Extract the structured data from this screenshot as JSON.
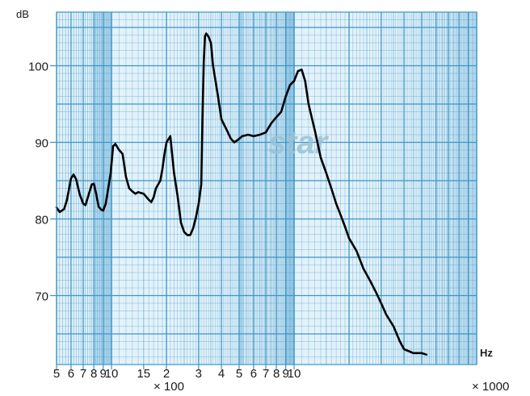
{
  "chart_data": {
    "type": "line",
    "x_scale": "log",
    "xlim": [
      50,
      10000
    ],
    "ylim": [
      61,
      107
    ],
    "ylabel": "dB",
    "xlabel": "Hz",
    "grid": true,
    "watermark": "star",
    "colors": {
      "grid": "#3d95c6",
      "band": "#a9d3ea",
      "background": "#e3f2fa",
      "line": "#000000",
      "text": "#1a1a1a",
      "watermark": "#9ac2d6"
    },
    "y_ticks": [
      {
        "value": 100,
        "label": "100"
      },
      {
        "value": 90,
        "label": "90"
      },
      {
        "value": 80,
        "label": "80"
      },
      {
        "value": 70,
        "label": "70"
      }
    ],
    "x_ticks": [
      {
        "value": 50,
        "label": "5"
      },
      {
        "value": 60,
        "label": "6"
      },
      {
        "value": 70,
        "label": "7"
      },
      {
        "value": 80,
        "label": "8"
      },
      {
        "value": 90,
        "label": "9"
      },
      {
        "value": 100,
        "label": "10"
      },
      {
        "value": 150,
        "label": "15"
      },
      {
        "value": 200,
        "label": "2"
      },
      {
        "value": 300,
        "label": "3"
      },
      {
        "value": 400,
        "label": "4"
      },
      {
        "value": 500,
        "label": "5"
      },
      {
        "value": 600,
        "label": "6"
      },
      {
        "value": 700,
        "label": "7"
      },
      {
        "value": 800,
        "label": "8"
      },
      {
        "value": 900,
        "label": "9"
      },
      {
        "value": 1000,
        "label": "10"
      }
    ],
    "x_multipliers": [
      "× 100",
      "× 1000"
    ],
    "series": [
      {
        "points": [
          [
            50,
            81.5
          ],
          [
            52,
            80.9
          ],
          [
            55,
            81.3
          ],
          [
            57,
            82.5
          ],
          [
            60,
            85.3
          ],
          [
            62,
            85.8
          ],
          [
            64,
            85.2
          ],
          [
            67,
            83.2
          ],
          [
            70,
            82.0
          ],
          [
            72,
            81.8
          ],
          [
            75,
            83.2
          ],
          [
            78,
            84.5
          ],
          [
            80,
            84.6
          ],
          [
            82,
            83.5
          ],
          [
            85,
            81.6
          ],
          [
            88,
            81.2
          ],
          [
            90,
            81.1
          ],
          [
            93,
            82.0
          ],
          [
            96,
            84.0
          ],
          [
            99,
            86.0
          ],
          [
            102,
            89.5
          ],
          [
            105,
            89.8
          ],
          [
            110,
            89.0
          ],
          [
            115,
            88.5
          ],
          [
            120,
            85.5
          ],
          [
            125,
            84.0
          ],
          [
            130,
            83.6
          ],
          [
            135,
            83.3
          ],
          [
            140,
            83.5
          ],
          [
            150,
            83.3
          ],
          [
            160,
            82.5
          ],
          [
            165,
            82.2
          ],
          [
            170,
            82.8
          ],
          [
            175,
            84.0
          ],
          [
            185,
            85.0
          ],
          [
            190,
            86.5
          ],
          [
            195,
            88.5
          ],
          [
            200,
            90.0
          ],
          [
            210,
            90.8
          ],
          [
            220,
            86.0
          ],
          [
            230,
            83.0
          ],
          [
            240,
            79.5
          ],
          [
            250,
            78.3
          ],
          [
            260,
            77.9
          ],
          [
            270,
            77.9
          ],
          [
            280,
            78.8
          ],
          [
            290,
            80.2
          ],
          [
            300,
            82.0
          ],
          [
            310,
            84.5
          ],
          [
            315,
            93.0
          ],
          [
            320,
            100.5
          ],
          [
            325,
            103.8
          ],
          [
            330,
            104.2
          ],
          [
            340,
            103.8
          ],
          [
            350,
            103.0
          ],
          [
            360,
            100.0
          ],
          [
            380,
            96.5
          ],
          [
            400,
            93.0
          ],
          [
            430,
            91.5
          ],
          [
            450,
            90.5
          ],
          [
            470,
            90.0
          ],
          [
            490,
            90.3
          ],
          [
            520,
            90.8
          ],
          [
            560,
            91.0
          ],
          [
            600,
            90.8
          ],
          [
            650,
            91.0
          ],
          [
            700,
            91.3
          ],
          [
            750,
            92.5
          ],
          [
            800,
            93.3
          ],
          [
            850,
            94.0
          ],
          [
            900,
            96.0
          ],
          [
            950,
            97.5
          ],
          [
            1000,
            98.0
          ],
          [
            1050,
            99.3
          ],
          [
            1100,
            99.5
          ],
          [
            1150,
            98.0
          ],
          [
            1200,
            95.0
          ],
          [
            1300,
            91.5
          ],
          [
            1400,
            88.0
          ],
          [
            1500,
            86.0
          ],
          [
            1600,
            84.0
          ],
          [
            1700,
            82.0
          ],
          [
            1800,
            80.5
          ],
          [
            1900,
            79.0
          ],
          [
            2000,
            77.5
          ],
          [
            2200,
            75.8
          ],
          [
            2400,
            73.5
          ],
          [
            2600,
            72.0
          ],
          [
            2800,
            70.5
          ],
          [
            3000,
            69.0
          ],
          [
            3200,
            67.5
          ],
          [
            3500,
            66.0
          ],
          [
            3800,
            64.0
          ],
          [
            4000,
            63.0
          ],
          [
            4500,
            62.5
          ],
          [
            5000,
            62.5
          ],
          [
            5300,
            62.3
          ]
        ]
      }
    ]
  }
}
